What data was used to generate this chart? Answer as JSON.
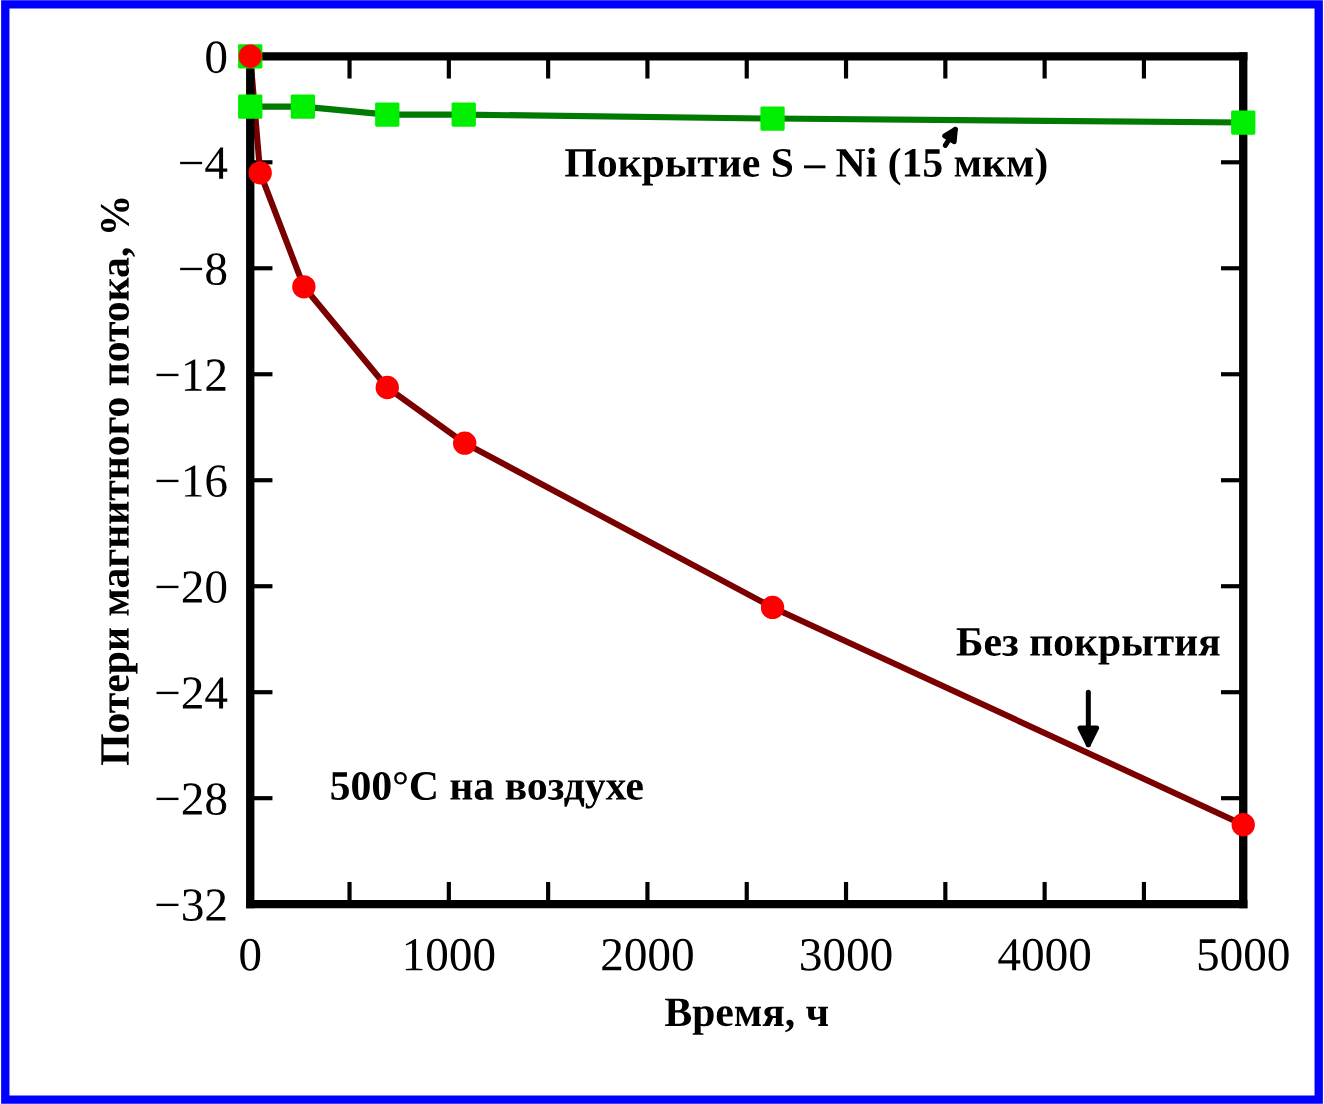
{
  "chart_data": {
    "type": "line",
    "xlabel": "Время, ч",
    "ylabel": "Потери магнитного потока, %",
    "xlim": [
      0,
      5000
    ],
    "ylim": [
      -32,
      0
    ],
    "xticks": [
      0,
      {
        "value": 500,
        "label": null
      },
      1000,
      {
        "value": 1500,
        "label": null
      },
      2000,
      {
        "value": 2500,
        "label": null
      },
      3000,
      {
        "value": 3500,
        "label": null
      },
      4000,
      {
        "value": 4500,
        "label": null
      },
      5000
    ],
    "yticks": [
      -32,
      -28,
      -24,
      -20,
      -16,
      -12,
      -8,
      -4,
      0
    ],
    "grid": false,
    "line_style": "solid",
    "series": [
      {
        "color": "#007a00",
        "colors": [
          "#00ee00",
          "#00ee00",
          "#00ee00",
          "#00ee00",
          "#00ee00",
          "#00ee00",
          "#00ee00"
        ],
        "marker": "square",
        "x": [
          0,
          0,
          265,
          690,
          1075,
          2630,
          5000
        ],
        "values": [
          0,
          -1.9,
          -1.9,
          -2.2,
          -2.2,
          -2.35,
          -2.5
        ]
      },
      {
        "color": "#7a0000",
        "colors": [
          "#ff0000",
          "#ff0000",
          "#ff0000",
          "#ff0000",
          "#ff0000",
          "#ff0000",
          "#ff0000"
        ],
        "marker": "circle",
        "x": [
          0,
          50,
          270,
          690,
          1080,
          2630,
          5000
        ],
        "values": [
          0,
          -4.4,
          -8.7,
          -12.5,
          -14.6,
          -20.8,
          -29.0
        ]
      }
    ],
    "annotations": [
      {
        "text": "Покрытие S – Ni (15 мкм)",
        "x": 3580,
        "y": -2.4
      },
      {
        "text": "Без покрытия",
        "x": 4220,
        "y": -26.4
      },
      "500°C на воздухе"
    ]
  }
}
